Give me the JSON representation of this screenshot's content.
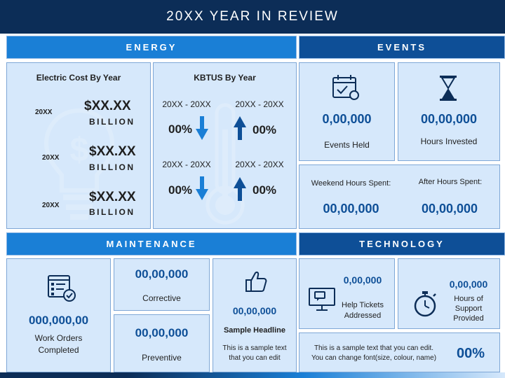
{
  "header": {
    "title": "20XX YEAR IN REVIEW"
  },
  "sections": {
    "energy": "ENERGY",
    "events": "EVENTS",
    "maintenance": "MAINTENANCE",
    "technology": "TECHNOLOGY"
  },
  "energy": {
    "electric": {
      "title": "Electric Cost By Year",
      "rows": [
        {
          "year": "20XX",
          "amount": "$XX.XX",
          "unit": "BILLION"
        },
        {
          "year": "20XX",
          "amount": "$XX.XX",
          "unit": "BILLION"
        },
        {
          "year": "20XX",
          "amount": "$XX.XX",
          "unit": "BILLION"
        }
      ]
    },
    "kbtus": {
      "title": "KBTUS By Year",
      "items": [
        {
          "range": "20XX - 20XX",
          "pct": "00%",
          "direction": "down"
        },
        {
          "range": "20XX - 20XX",
          "pct": "00%",
          "direction": "up"
        },
        {
          "range": "20XX - 20XX",
          "pct": "00%",
          "direction": "down"
        },
        {
          "range": "20XX - 20XX",
          "pct": "00%",
          "direction": "up"
        }
      ]
    }
  },
  "events": {
    "held": {
      "value": "0,00,000",
      "label": "Events Held"
    },
    "hours": {
      "value": "00,00,000",
      "label": "Hours Invested"
    },
    "weekend": {
      "label": "Weekend Hours Spent:",
      "value": "00,00,000"
    },
    "after": {
      "label": "After Hours Spent:",
      "value": "00,00,000"
    }
  },
  "maintenance": {
    "work_orders": {
      "value": "000,000,00",
      "label_line1": "Work Orders",
      "label_line2": "Completed"
    },
    "corrective": {
      "value": "00,00,000",
      "label": "Corrective"
    },
    "preventive": {
      "value": "00,00,000",
      "label": "Preventive"
    },
    "sample": {
      "value": "00,00,000",
      "headline": "Sample Headline",
      "line1": "This is a sample text",
      "line2": "that you can edit"
    }
  },
  "technology": {
    "help": {
      "value": "0,00,000",
      "line1": "Help Tickets",
      "line2": "Addressed"
    },
    "support": {
      "value": "0,00,000",
      "line1": "Hours of",
      "line2": "Support",
      "line3": "Provided"
    },
    "note": {
      "line1": "This is a sample text that you can edit.",
      "line2": "You can change font(size, colour, name)",
      "pct": "00%"
    }
  },
  "colors": {
    "navy": "#0c2d57",
    "blue": "#1a7fd6",
    "dark_blue": "#0e4f97",
    "panel": "#d6e8fb"
  },
  "icons": [
    "lightbulb-icon",
    "thermometer-icon",
    "arrow-down-icon",
    "arrow-up-icon",
    "calendar-check-icon",
    "hourglass-icon",
    "checklist-icon",
    "thumbs-up-icon",
    "computer-support-icon",
    "stopwatch-icon"
  ]
}
